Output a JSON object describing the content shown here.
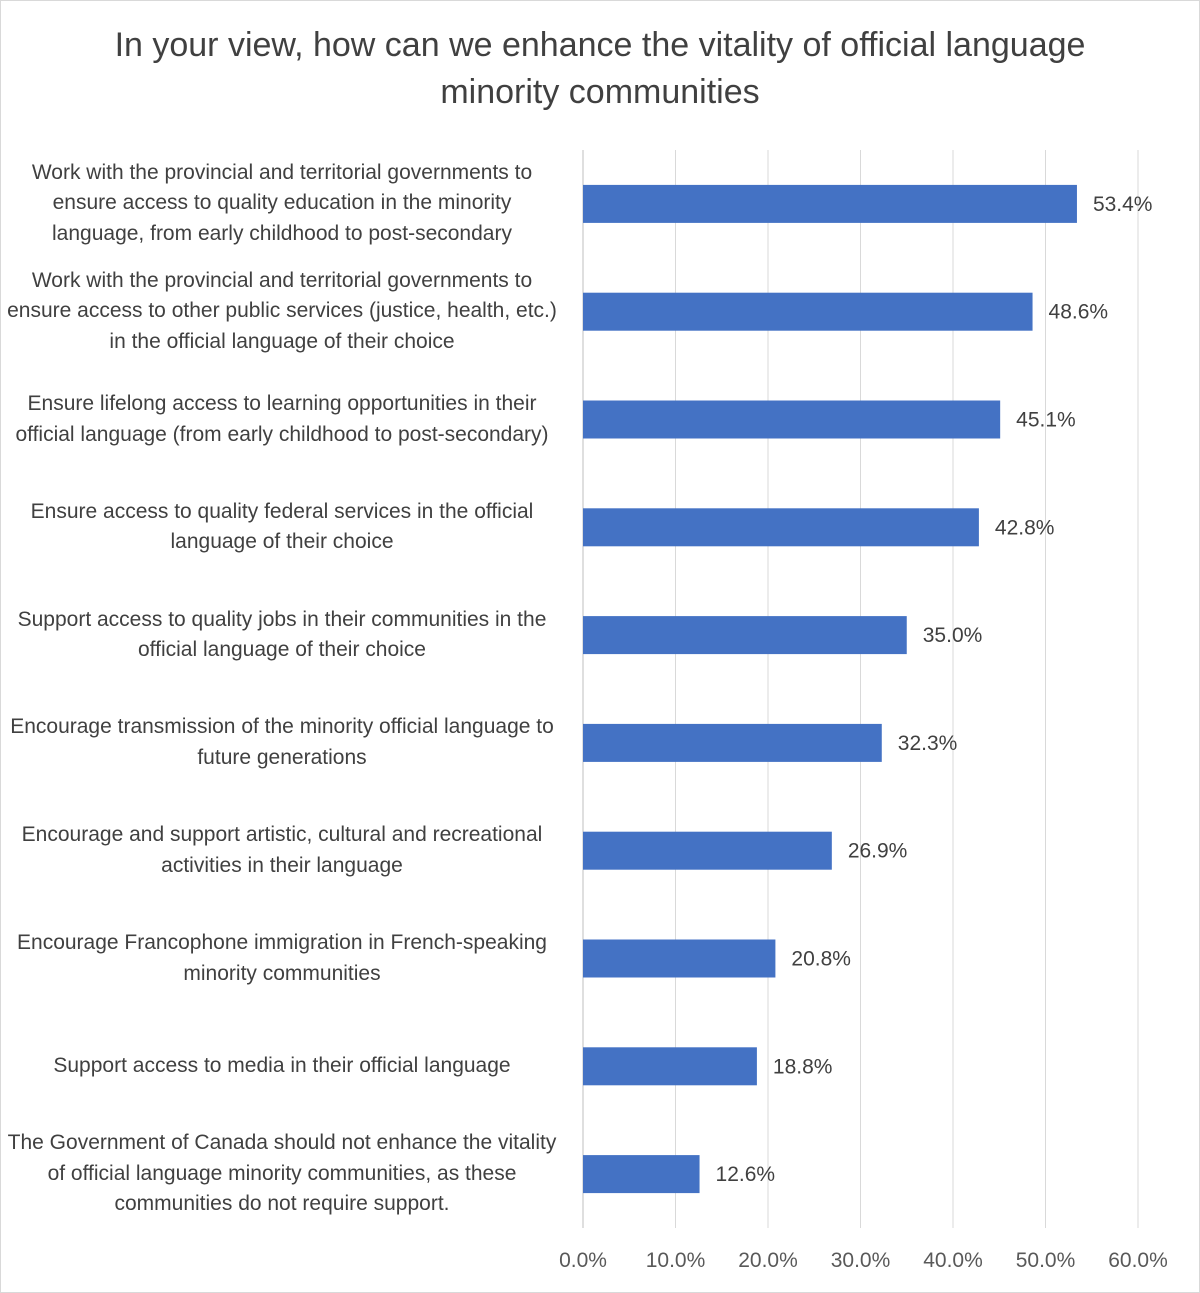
{
  "chart_data": {
    "type": "bar",
    "orientation": "horizontal",
    "title": "In your view, how can we enhance the vitality of official language minority communities",
    "xlabel": "",
    "ylabel": "",
    "xlim": [
      0,
      60
    ],
    "x_ticks": [
      "0.0%",
      "10.0%",
      "20.0%",
      "30.0%",
      "40.0%",
      "50.0%",
      "60.0%"
    ],
    "grid": true,
    "legend": "none",
    "bar_color": "#4472C4",
    "categories": [
      "Work with the provincial and territorial governments to ensure access to quality education in the minority language, from early childhood to post-secondary",
      "Work with the provincial and territorial governments to ensure access to other public services (justice, health, etc.) in the official language of their choice",
      "Ensure lifelong access to learning opportunities in their official language (from early childhood to post-secondary)",
      "Ensure access to quality federal services in the official language of their choice",
      "Support access to quality jobs in their communities in the official language of their choice",
      "Encourage transmission of the minority official language to future generations",
      "Encourage and support artistic, cultural and recreational activities in their language",
      "Encourage Francophone immigration in French-speaking minority communities",
      "Support access to media in their official language",
      "The Government of Canada should not enhance the vitality of official language minority communities, as these communities do not require support."
    ],
    "values": [
      53.4,
      48.6,
      45.1,
      42.8,
      35.0,
      32.3,
      26.9,
      20.8,
      18.8,
      12.6
    ],
    "value_labels": [
      "53.4%",
      "48.6%",
      "45.1%",
      "42.8%",
      "35.0%",
      "32.3%",
      "26.9%",
      "20.8%",
      "18.8%",
      "12.6%"
    ]
  }
}
